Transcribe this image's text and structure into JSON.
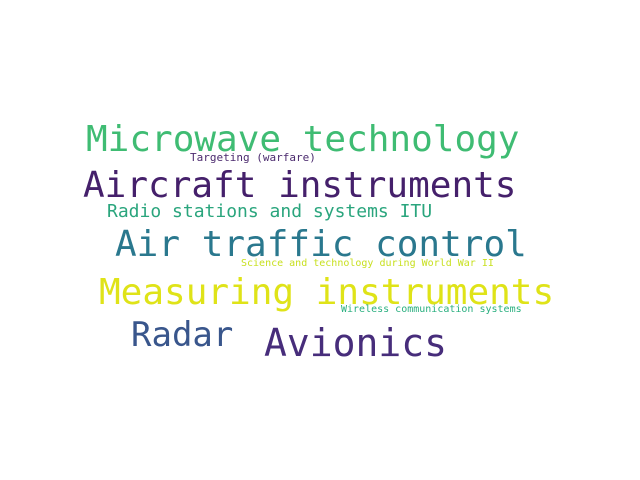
{
  "words": [
    {
      "text": "Microwave technology",
      "color": "#3fbc73"
    },
    {
      "text": "Targeting (warfare)",
      "color": "#4b2a6e"
    },
    {
      "text": "Aircraft instruments",
      "color": "#45206b"
    },
    {
      "text": "Radio stations and systems ITU",
      "color": "#2aa57d"
    },
    {
      "text": "Air traffic control",
      "color": "#2a788e"
    },
    {
      "text": "Science and technology during World War II",
      "color": "#c8e020"
    },
    {
      "text": "Measuring instruments",
      "color": "#dfe318"
    },
    {
      "text": "Wireless communication systems",
      "color": "#29af7f"
    },
    {
      "text": "Radar",
      "color": "#39568c"
    },
    {
      "text": "Avionics",
      "color": "#472d7b"
    }
  ]
}
